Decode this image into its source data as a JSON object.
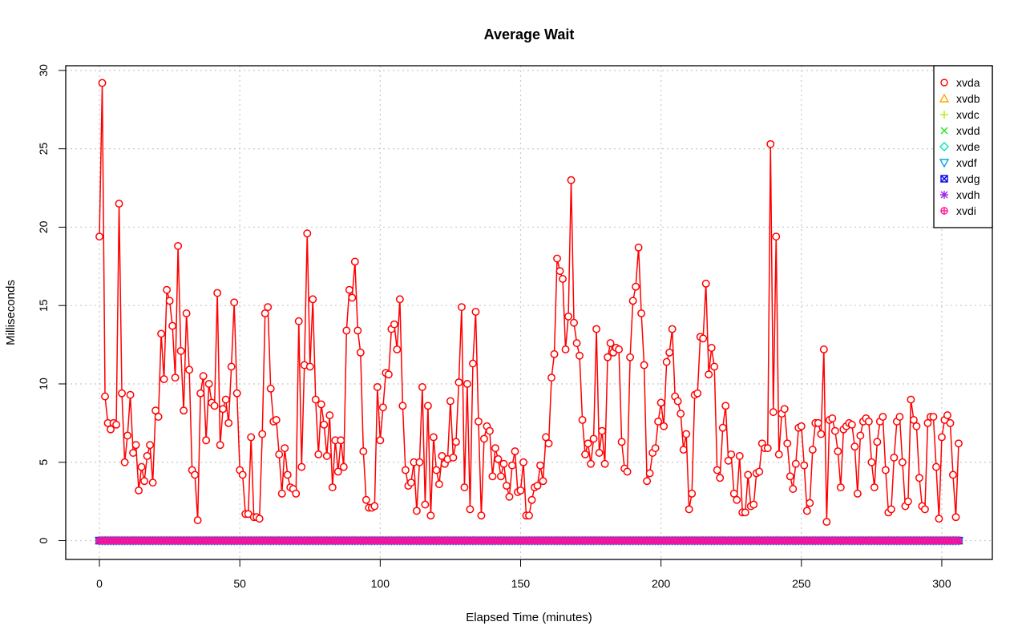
{
  "chart_data": {
    "type": "line",
    "title": "Average Wait",
    "xlabel": "Elapsed Time (minutes)",
    "ylabel": "Milliseconds",
    "xlim": [
      -12,
      318
    ],
    "ylim": [
      -1.2,
      30.3
    ],
    "x_ticks": [
      0,
      50,
      100,
      150,
      200,
      250,
      300
    ],
    "y_ticks": [
      0,
      5,
      10,
      15,
      20,
      25,
      30
    ],
    "x_tick_labels": [
      "0",
      "50",
      "100",
      "150",
      "200",
      "250",
      "300"
    ],
    "y_tick_labels": [
      "0",
      "5",
      "10",
      "15",
      "20",
      "25",
      "30"
    ],
    "grid": true,
    "legend_position": "top-right",
    "x_start": 0,
    "x_step": 1,
    "series": [
      {
        "name": "xvda",
        "color": "#FF0000",
        "marker": "circle",
        "values": [
          19.4,
          29.2,
          9.2,
          7.5,
          7.1,
          7.5,
          7.4,
          21.5,
          9.4,
          5.0,
          6.7,
          9.3,
          5.6,
          6.1,
          3.2,
          4.7,
          3.8,
          5.4,
          6.1,
          3.7,
          8.3,
          7.9,
          13.2,
          10.3,
          16.0,
          15.3,
          13.7,
          10.4,
          18.8,
          12.1,
          8.3,
          14.5,
          10.9,
          4.5,
          4.2,
          1.3,
          9.4,
          10.5,
          6.4,
          10.0,
          8.8,
          8.6,
          15.8,
          6.1,
          8.4,
          9.0,
          7.5,
          11.1,
          15.2,
          9.4,
          4.5,
          4.2,
          1.7,
          1.7,
          6.6,
          1.5,
          1.5,
          1.4,
          6.8,
          14.5,
          14.9,
          9.7,
          7.6,
          7.7,
          5.5,
          3.0,
          5.9,
          4.2,
          3.4,
          3.3,
          3.0,
          14.0,
          4.7,
          11.2,
          19.6,
          11.1,
          15.4,
          9.0,
          5.5,
          8.7,
          7.4,
          5.4,
          8.0,
          3.4,
          6.4,
          4.4,
          6.4,
          4.7,
          13.4,
          16.0,
          15.5,
          17.8,
          13.4,
          12.0,
          5.7,
          2.6,
          2.1,
          2.1,
          2.2,
          9.8,
          6.4,
          8.5,
          10.7,
          10.6,
          13.5,
          13.8,
          12.2,
          15.4,
          8.6,
          4.5,
          3.5,
          3.7,
          5.0,
          1.9,
          5.0,
          9.8,
          2.3,
          8.6,
          1.6,
          6.6,
          4.5,
          3.6,
          5.4,
          4.9,
          5.2,
          8.9,
          5.3,
          6.3,
          10.1,
          14.9,
          3.4,
          10.0,
          2.0,
          11.3,
          14.6,
          7.6,
          1.6,
          6.5,
          7.3,
          7.0,
          4.1,
          5.9,
          5.2,
          4.1,
          4.9,
          3.5,
          2.8,
          4.8,
          5.7,
          3.1,
          3.2,
          5.0,
          1.6,
          1.6,
          2.6,
          3.4,
          3.5,
          4.8,
          3.8,
          6.6,
          6.2,
          10.4,
          11.9,
          18.0,
          17.2,
          16.7,
          12.2,
          14.3,
          23.0,
          13.9,
          12.6,
          11.8,
          7.7,
          5.5,
          6.2,
          4.9,
          6.5,
          13.5,
          5.6,
          7.0,
          4.9,
          11.7,
          12.6,
          12.0,
          12.3,
          12.2,
          6.3,
          4.6,
          4.4,
          11.7,
          15.3,
          16.2,
          18.7,
          14.5,
          11.2,
          3.8,
          4.3,
          5.6,
          5.9,
          7.6,
          8.8,
          7.3,
          11.4,
          12.0,
          13.5,
          9.2,
          8.9,
          8.1,
          5.8,
          6.8,
          2.0,
          3.0,
          9.3,
          9.4,
          13.0,
          12.9,
          16.4,
          10.6,
          12.3,
          11.1,
          4.5,
          4.0,
          7.2,
          8.6,
          5.1,
          5.5,
          3.0,
          2.6,
          5.4,
          1.8,
          1.8,
          4.2,
          2.2,
          2.3,
          4.3,
          4.4,
          6.2,
          5.9,
          5.9,
          25.3,
          8.2,
          19.4,
          5.5,
          8.1,
          8.4,
          6.2,
          4.1,
          3.3,
          4.9,
          7.2,
          7.3,
          4.8,
          1.9,
          2.4,
          5.8,
          7.5,
          7.5,
          6.8,
          12.2,
          1.2,
          7.7,
          7.8,
          7.0,
          5.7,
          3.4,
          7.1,
          7.3,
          7.5,
          7.4,
          6.0,
          3.0,
          6.7,
          7.6,
          7.8,
          7.6,
          5.0,
          3.4,
          6.3,
          7.6,
          7.9,
          4.5,
          1.8,
          2.0,
          5.3,
          7.6,
          7.9,
          5.0,
          2.2,
          2.5,
          9.0,
          7.7,
          7.3,
          4.0,
          2.2,
          2.0,
          7.5,
          7.9,
          7.9,
          4.7,
          1.4,
          6.6,
          7.7,
          8.0,
          7.5,
          4.2,
          1.5,
          6.2
        ]
      },
      {
        "name": "xvdb",
        "color": "#FFA500",
        "marker": "triangle",
        "constant": 0
      },
      {
        "name": "xvdc",
        "color": "#B3EE00",
        "marker": "plus",
        "constant": 0
      },
      {
        "name": "xvdd",
        "color": "#22E622",
        "marker": "cross",
        "constant": 0
      },
      {
        "name": "xvde",
        "color": "#00E6B0",
        "marker": "diamond",
        "constant": 0
      },
      {
        "name": "xvdf",
        "color": "#00A8E6",
        "marker": "triangle-down",
        "constant": 0
      },
      {
        "name": "xvdg",
        "color": "#0000E6",
        "marker": "square-cross",
        "constant": 0
      },
      {
        "name": "xvdh",
        "color": "#A020F0",
        "marker": "asterisk",
        "constant": 0
      },
      {
        "name": "xvdi",
        "color": "#FF1493",
        "marker": "circle-plus",
        "constant": 0
      }
    ]
  }
}
